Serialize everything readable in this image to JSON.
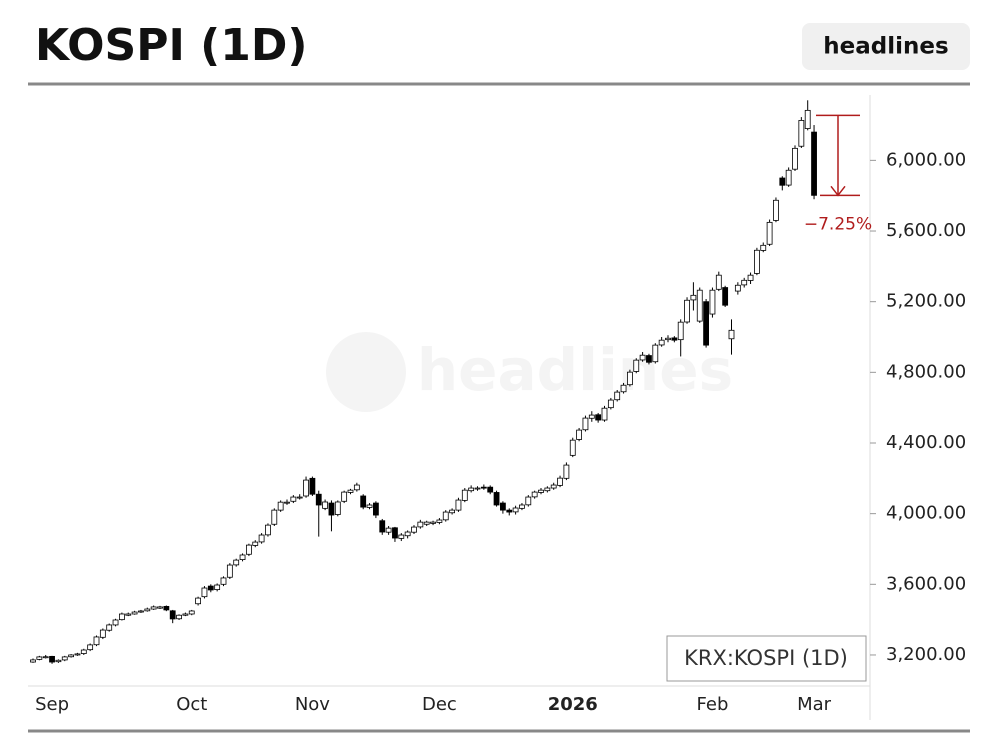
{
  "header": {
    "title": "KOSPI (1D)",
    "button": "headlines"
  },
  "chart_data": {
    "type": "candlestick",
    "watermark": "headlines",
    "legend": "KRX:KOSPI (1D)",
    "up_color": "#ffffff",
    "down_color": "#000000",
    "categories": [
      null,
      null,
      null,
      "Sep",
      null,
      null,
      null,
      null,
      null,
      null,
      null,
      null,
      null,
      null,
      null,
      null,
      null,
      null,
      null,
      null,
      null,
      null,
      null,
      null,
      null,
      "Oct",
      null,
      null,
      null,
      null,
      null,
      null,
      null,
      null,
      null,
      null,
      null,
      null,
      null,
      null,
      null,
      null,
      null,
      null,
      "Nov",
      null,
      null,
      null,
      null,
      null,
      null,
      null,
      null,
      null,
      null,
      null,
      null,
      null,
      null,
      null,
      null,
      null,
      null,
      null,
      "Dec",
      null,
      null,
      null,
      null,
      null,
      null,
      null,
      null,
      null,
      null,
      null,
      null,
      null,
      null,
      null,
      null,
      null,
      null,
      null,
      null,
      "2026",
      null,
      null,
      null,
      null,
      null,
      null,
      null,
      null,
      null,
      null,
      null,
      null,
      null,
      null,
      null,
      null,
      null,
      null,
      null,
      null,
      null,
      "Feb",
      null,
      null,
      null,
      null,
      null,
      null,
      null,
      null,
      null,
      null,
      null,
      null,
      null,
      null,
      null,
      "Mar"
    ],
    "open": [
      3160,
      3175,
      3185,
      3192,
      3162,
      3172,
      3190,
      3200,
      3208,
      3230,
      3258,
      3300,
      3340,
      3370,
      3400,
      3425,
      3432,
      3443,
      3450,
      3460,
      3465,
      3475,
      3450,
      3405,
      3425,
      3432,
      3490,
      3530,
      3590,
      3570,
      3600,
      3640,
      3710,
      3740,
      3770,
      3820,
      3840,
      3880,
      3940,
      4020,
      4060,
      4070,
      4090,
      4100,
      4200,
      4110,
      4030,
      4060,
      3995,
      4070,
      4120,
      4135,
      4100,
      4035,
      4060,
      3960,
      3895,
      3920,
      3860,
      3875,
      3895,
      3925,
      3940,
      3945,
      3950,
      3965,
      4005,
      4020,
      4075,
      4130,
      4140,
      4150,
      4150,
      4120,
      4060,
      4020,
      4010,
      4030,
      4050,
      4095,
      4120,
      4130,
      4145,
      4160,
      4200,
      4330,
      4420,
      4475,
      4540,
      4560,
      4530,
      4600,
      4645,
      4690,
      4730,
      4805,
      4870,
      4895,
      4860,
      4955,
      4985,
      4995,
      4985,
      5085,
      5210,
      5090,
      5200,
      5130,
      5270,
      5280,
      4990,
      5260,
      5295,
      5320,
      5360,
      5490,
      5525,
      5660,
      5900,
      5860,
      5950,
      6080,
      6180,
      6160
    ],
    "high": [
      3180,
      3195,
      3200,
      3195,
      3175,
      3195,
      3205,
      3212,
      3235,
      3265,
      3310,
      3350,
      3378,
      3405,
      3440,
      3440,
      3450,
      3455,
      3468,
      3480,
      3478,
      3480,
      3455,
      3430,
      3440,
      3455,
      3530,
      3590,
      3600,
      3605,
      3645,
      3720,
      3745,
      3775,
      3830,
      3850,
      3890,
      3945,
      4030,
      4075,
      4080,
      4105,
      4110,
      4210,
      4210,
      4130,
      4080,
      4075,
      4075,
      4130,
      4140,
      4175,
      4110,
      4060,
      4070,
      3970,
      3930,
      3925,
      3890,
      3905,
      3935,
      3965,
      3960,
      3960,
      3975,
      4020,
      4030,
      4090,
      4145,
      4160,
      4155,
      4165,
      4160,
      4130,
      4070,
      4030,
      4045,
      4060,
      4105,
      4130,
      4145,
      4155,
      4175,
      4215,
      4290,
      4430,
      4485,
      4555,
      4580,
      4570,
      4610,
      4655,
      4700,
      4740,
      4815,
      4880,
      4915,
      4905,
      4965,
      5000,
      5010,
      5005,
      5100,
      5225,
      5310,
      5280,
      5215,
      5280,
      5370,
      5290,
      5100,
      5310,
      5335,
      5365,
      5505,
      5535,
      5665,
      5790,
      5910,
      5960,
      6085,
      6245,
      6340,
      6200
    ],
    "low": [
      3155,
      3170,
      3180,
      3150,
      3155,
      3165,
      3185,
      3195,
      3200,
      3222,
      3250,
      3290,
      3332,
      3362,
      3395,
      3420,
      3428,
      3438,
      3445,
      3455,
      3460,
      3448,
      3380,
      3398,
      3420,
      3425,
      3480,
      3520,
      3555,
      3560,
      3590,
      3630,
      3700,
      3730,
      3760,
      3810,
      3830,
      3870,
      3930,
      4010,
      4050,
      4060,
      4080,
      4090,
      4100,
      3870,
      4020,
      3900,
      3985,
      4060,
      4110,
      4125,
      4025,
      4025,
      3975,
      3880,
      3880,
      3840,
      3845,
      3860,
      3885,
      3915,
      3930,
      3935,
      3940,
      3955,
      3995,
      4010,
      4065,
      4120,
      4130,
      4135,
      4110,
      4040,
      4000,
      3990,
      3995,
      4020,
      4040,
      4085,
      4110,
      4120,
      4135,
      4150,
      4190,
      4320,
      4410,
      4465,
      4520,
      4515,
      4520,
      4590,
      4635,
      4680,
      4720,
      4795,
      4860,
      4845,
      4850,
      4945,
      4970,
      4970,
      4890,
      5075,
      5150,
      5080,
      4940,
      5110,
      5260,
      5170,
      4900,
      5240,
      5280,
      5300,
      5350,
      5480,
      5515,
      5650,
      5830,
      5850,
      5940,
      6070,
      6170,
      5780
    ],
    "close": [
      3172,
      3189,
      3190,
      3160,
      3170,
      3189,
      3200,
      3206,
      3228,
      3257,
      3302,
      3341,
      3370,
      3398,
      3432,
      3432,
      3443,
      3449,
      3460,
      3472,
      3472,
      3455,
      3404,
      3425,
      3432,
      3449,
      3522,
      3579,
      3568,
      3596,
      3636,
      3709,
      3737,
      3766,
      3822,
      3839,
      3879,
      3935,
      4020,
      4065,
      4065,
      4094,
      4094,
      4190,
      4110,
      4049,
      4066,
      3992,
      4066,
      4122,
      4133,
      4162,
      4037,
      4049,
      3992,
      3896,
      3918,
      3862,
      3879,
      3896,
      3924,
      3952,
      3952,
      3952,
      3964,
      4009,
      4020,
      4077,
      4133,
      4145,
      4145,
      4145,
      4122,
      4049,
      4020,
      4009,
      4032,
      4049,
      4094,
      4122,
      4133,
      4145,
      4162,
      4201,
      4275,
      4416,
      4473,
      4541,
      4558,
      4530,
      4597,
      4643,
      4688,
      4727,
      4801,
      4869,
      4897,
      4857,
      4954,
      4982,
      4993,
      4982,
      5084,
      5208,
      5236,
      5265,
      4954,
      5265,
      5350,
      5180,
      5038,
      5293,
      5321,
      5350,
      5491,
      5519,
      5649,
      5774,
      5859,
      5944,
      6068,
      6226,
      6283,
      5802
    ],
    "ylim": [
      3030,
      6370
    ],
    "yticks": [
      {
        "value": 3200,
        "label": "3,200.00"
      },
      {
        "value": 3600,
        "label": "3,600.00"
      },
      {
        "value": 4000,
        "label": "4,000.00"
      },
      {
        "value": 4400,
        "label": "4,400.00"
      },
      {
        "value": 4800,
        "label": "4,800.00"
      },
      {
        "value": 5200,
        "label": "5,200.00"
      },
      {
        "value": 5600,
        "label": "5,600.00"
      },
      {
        "value": 6000,
        "label": "6,000.00"
      }
    ],
    "annotation": {
      "text": "−7.25%",
      "from": 6255,
      "to": 5802,
      "color": "#b01c1c"
    }
  }
}
